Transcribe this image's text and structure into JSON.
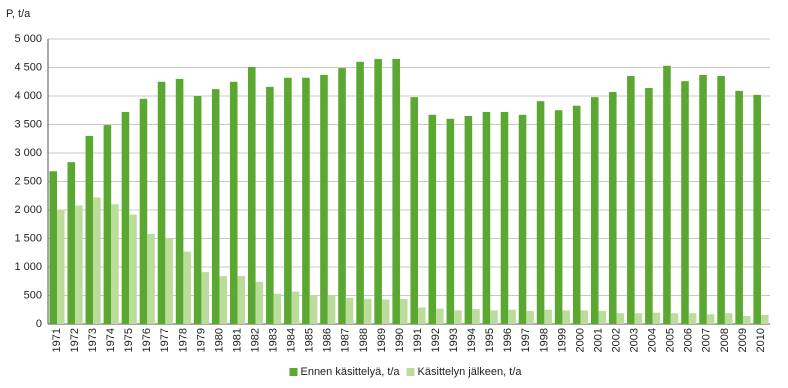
{
  "chart_data": {
    "type": "bar",
    "y_label": "P, t/a",
    "categories": [
      "1971",
      "1972",
      "1973",
      "1974",
      "1975",
      "1976",
      "1977",
      "1978",
      "1979",
      "1980",
      "1981",
      "1982",
      "1983",
      "1984",
      "1985",
      "1986",
      "1987",
      "1988",
      "1989",
      "1990",
      "1991",
      "1992",
      "1993",
      "1994",
      "1995",
      "1996",
      "1997",
      "1998",
      "1999",
      "2000",
      "2001",
      "2002",
      "2003",
      "2004",
      "2005",
      "2006",
      "2007",
      "2008",
      "2009",
      "2010"
    ],
    "series": [
      {
        "name": "Ennen käsittelyä, t/a",
        "color": "#5aa832",
        "values": [
          2680,
          2840,
          3300,
          3490,
          3720,
          3950,
          4250,
          4300,
          4000,
          4120,
          4250,
          4510,
          4160,
          4320,
          4320,
          4370,
          4490,
          4600,
          4650,
          4650,
          3980,
          3670,
          3600,
          3650,
          3720,
          3720,
          3670,
          3910,
          3750,
          3830,
          3980,
          4070,
          4350,
          4140,
          4530,
          4260,
          4370,
          4350,
          4090,
          4020
        ]
      },
      {
        "name": "Käsittelyn jälkeen, t/a",
        "color": "#bcdc9c",
        "values": [
          2000,
          2080,
          2220,
          2100,
          1920,
          1580,
          1500,
          1270,
          910,
          840,
          840,
          740,
          530,
          570,
          500,
          500,
          460,
          440,
          430,
          440,
          290,
          270,
          240,
          260,
          240,
          250,
          230,
          250,
          240,
          240,
          230,
          190,
          190,
          200,
          190,
          190,
          170,
          190,
          140,
          160
        ]
      }
    ],
    "ylim": [
      0,
      5000
    ],
    "yticks": [
      0,
      500,
      {
        "value": 1000,
        "label": "1 000"
      },
      {
        "value": 1500,
        "label": "1 500"
      },
      {
        "value": 2000,
        "label": "2 000"
      },
      {
        "value": 2500,
        "label": "2 500"
      },
      {
        "value": 3000,
        "label": "3 000"
      },
      {
        "value": 3500,
        "label": "3 500"
      },
      {
        "value": 4000,
        "label": "4 000"
      },
      {
        "value": 4500,
        "label": "4 500"
      },
      {
        "value": 5000,
        "label": "5 000"
      }
    ],
    "grid": true,
    "legend": "bottom"
  }
}
